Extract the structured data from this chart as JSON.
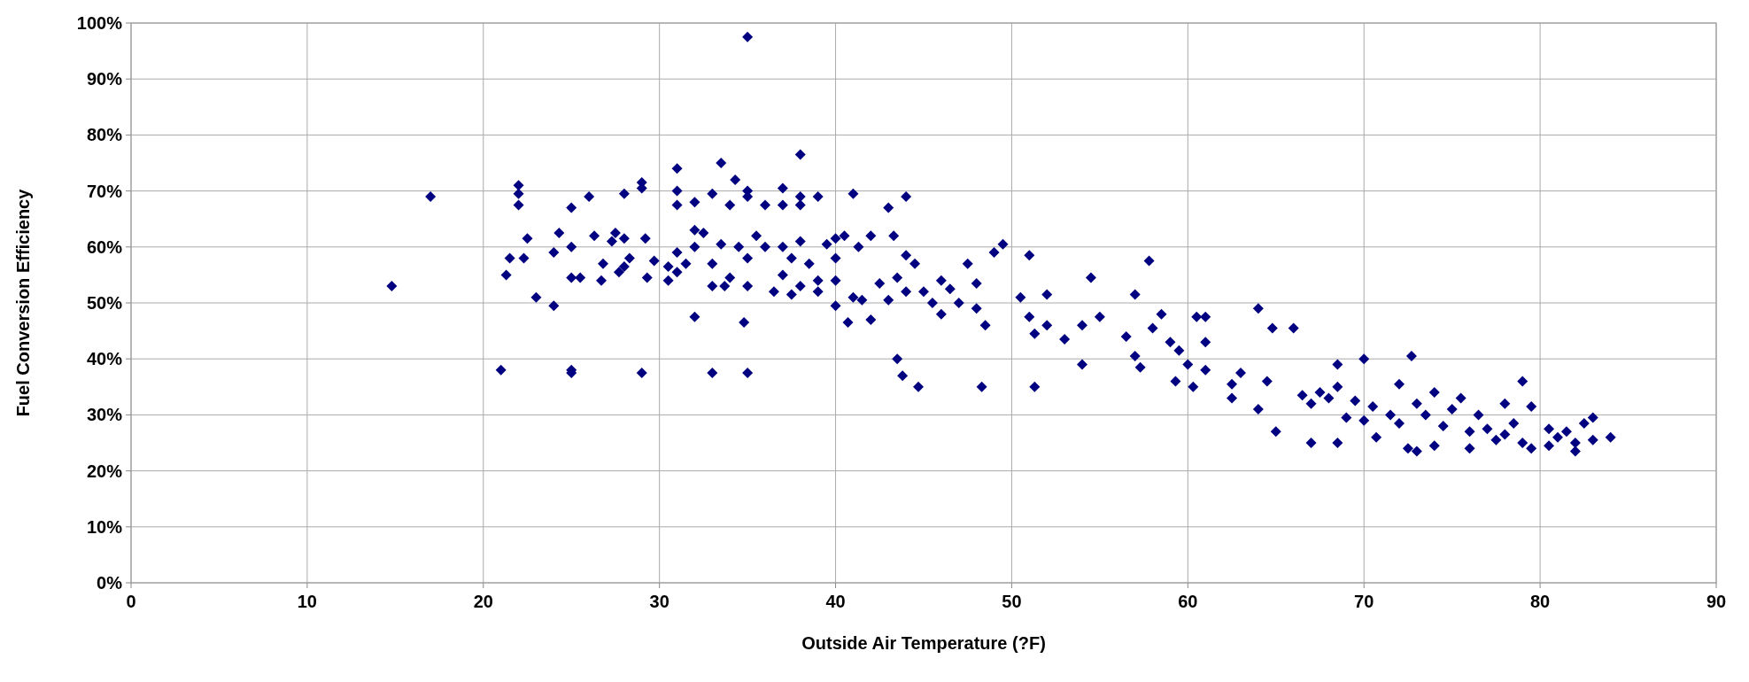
{
  "chart_data": {
    "type": "scatter",
    "xlabel": "Outside Air Temperature (?F)",
    "ylabel": "Fuel Conversion Efficiency",
    "xlim": [
      0,
      90
    ],
    "xticks": [
      0,
      10,
      20,
      30,
      40,
      50,
      60,
      70,
      80,
      90
    ],
    "ylim": [
      0,
      100
    ],
    "yticks": [
      {
        "value": 0,
        "label": "0%"
      },
      {
        "value": 10,
        "label": "10%"
      },
      {
        "value": 20,
        "label": "20%"
      },
      {
        "value": 30,
        "label": "30%"
      },
      {
        "value": 40,
        "label": "40%"
      },
      {
        "value": 50,
        "label": "50%"
      },
      {
        "value": 60,
        "label": "60%"
      },
      {
        "value": 70,
        "label": "70%"
      },
      {
        "value": 80,
        "label": "80%"
      },
      {
        "value": 90,
        "label": "90%"
      },
      {
        "value": 100,
        "label": "100%"
      }
    ],
    "grid": true,
    "marker": "diamond",
    "series": [
      {
        "color": "#000080",
        "x": [
          14.8,
          17,
          21,
          21.3,
          21.5,
          22,
          22,
          22,
          22.3,
          22.5,
          23,
          24,
          24,
          24.3,
          25,
          25,
          25,
          25,
          25,
          25.5,
          26,
          26.3,
          26.7,
          26.8,
          27.3,
          27.5,
          27.7,
          28,
          28,
          28,
          28.3,
          29,
          29,
          29,
          29.2,
          29.3,
          29.7,
          30.5,
          30.5,
          31,
          31,
          31,
          31,
          31,
          31.5,
          32,
          32,
          32,
          32,
          32.5,
          33,
          33,
          33,
          33,
          33.5,
          33.5,
          33.7,
          34,
          34,
          34.3,
          34.5,
          34.8,
          35,
          35,
          35,
          35,
          35,
          35,
          35.5,
          36,
          36,
          36.5,
          37,
          37,
          37,
          37,
          37.5,
          37.5,
          38,
          38,
          38,
          38,
          38,
          38.5,
          39,
          39,
          39,
          39.5,
          40,
          40,
          40,
          40,
          40.5,
          40.7,
          41,
          41,
          41.3,
          41.5,
          42,
          42,
          42.5,
          43,
          43,
          43.3,
          43.5,
          43.5,
          43.8,
          44,
          44,
          44,
          44.5,
          44.7,
          45,
          45.5,
          46,
          46,
          46.5,
          47,
          47.5,
          48,
          48,
          48.3,
          48.5,
          49,
          49.5,
          50.5,
          51,
          51,
          51.3,
          51.3,
          52,
          52,
          53,
          54,
          54,
          54.5,
          55,
          56.5,
          57,
          57,
          57.3,
          57.8,
          58,
          58.5,
          59,
          59.3,
          59.5,
          60,
          60.3,
          60.5,
          61,
          61,
          61,
          62.5,
          62.5,
          63,
          64,
          64,
          64.5,
          64.8,
          65,
          66,
          66.5,
          67,
          67,
          67.5,
          68,
          68.5,
          68.5,
          68.5,
          69,
          69.5,
          70,
          70,
          70.5,
          70.7,
          71.5,
          72,
          72,
          72.5,
          72.7,
          73,
          73,
          73.5,
          74,
          74,
          74.5,
          75,
          75.5,
          76,
          76,
          76.5,
          77,
          77.5,
          78,
          78,
          78.5,
          79,
          79,
          79.5,
          79.5,
          80.5,
          80.5,
          81,
          81.5,
          82,
          82,
          82.5,
          83,
          83,
          84
        ],
        "values": [
          53,
          69,
          38,
          55,
          58,
          71,
          69.5,
          67.5,
          58,
          61.5,
          51,
          59,
          49.5,
          62.5,
          54.5,
          67,
          60,
          38,
          37.5,
          54.5,
          69,
          62,
          54,
          57,
          61,
          62.5,
          55.5,
          69.5,
          56.5,
          61.5,
          58,
          71.5,
          70.5,
          37.5,
          61.5,
          54.5,
          57.5,
          56.5,
          54,
          74,
          70,
          67.5,
          59,
          55.5,
          57,
          68,
          63,
          47.5,
          60,
          62.5,
          69.5,
          57,
          53,
          37.5,
          75,
          60.5,
          53,
          67.5,
          54.5,
          72,
          60,
          46.5,
          97.5,
          70,
          69,
          58,
          53,
          37.5,
          62,
          67.5,
          60,
          52,
          70.5,
          67.5,
          60,
          55,
          58,
          51.5,
          76.5,
          69,
          67.5,
          61,
          53,
          57,
          54,
          52,
          69,
          60.5,
          61.5,
          58,
          54,
          49.5,
          62,
          46.5,
          69.5,
          51,
          60,
          50.5,
          62,
          47,
          53.5,
          67,
          50.5,
          62,
          54.5,
          40,
          37,
          69,
          52,
          58.5,
          57,
          35,
          52,
          50,
          54,
          48,
          52.5,
          50,
          57,
          53.5,
          49,
          35,
          46,
          59,
          60.5,
          51,
          58.5,
          47.5,
          44.5,
          35,
          51.5,
          46,
          43.5,
          39,
          46,
          54.5,
          47.5,
          44,
          51.5,
          40.5,
          38.5,
          57.5,
          45.5,
          48,
          43,
          36,
          41.5,
          39,
          35,
          47.5,
          47.5,
          43,
          38,
          33,
          35.5,
          37.5,
          49,
          31,
          36,
          45.5,
          27,
          45.5,
          33.5,
          25,
          32,
          34,
          33,
          39,
          35,
          25,
          29.5,
          32.5,
          40,
          29,
          31.5,
          26,
          30,
          35.5,
          28.5,
          24,
          40.5,
          32,
          23.5,
          30,
          34,
          24.5,
          28,
          31,
          33,
          27,
          24,
          30,
          27.5,
          25.5,
          32,
          26.5,
          28.5,
          36,
          25,
          24,
          31.5,
          27.5,
          24.5,
          26,
          27,
          25,
          23.5,
          28.5,
          29.5,
          25.5,
          26
        ]
      }
    ]
  }
}
